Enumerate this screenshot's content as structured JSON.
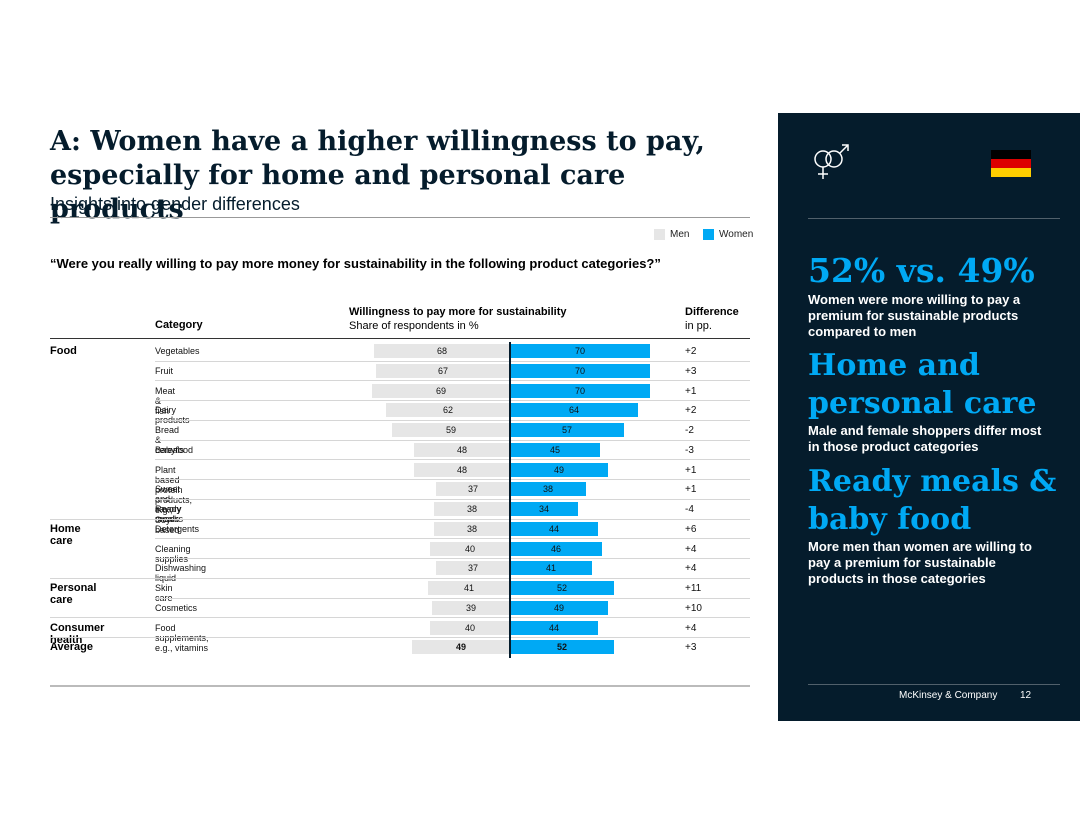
{
  "title": "A: Women have a higher willingness to pay, especially for home and personal care products",
  "subtitle": "Insights into gender differences",
  "legend": {
    "men": "Men",
    "women": "Women"
  },
  "question": "“Were you really willing to pay more money for sustainability in the following product categories?”",
  "headers": {
    "category": "Category",
    "wtp_title": "Willingness to pay more for sustainability",
    "wtp_sub": "Share of respondents in %",
    "diff_title": "Difference",
    "diff_sub": "in pp."
  },
  "colors": {
    "men": "#e6e6e6",
    "women": "#00a9f4",
    "navy": "#051c2c"
  },
  "chart_data": {
    "type": "bar",
    "title": "Willingness to pay more for sustainability",
    "ylabel": "Share of respondents in %",
    "series": [
      {
        "name": "Men",
        "values": [
          68,
          67,
          69,
          62,
          59,
          48,
          48,
          37,
          38,
          38,
          40,
          37,
          41,
          39,
          40,
          49
        ]
      },
      {
        "name": "Women",
        "values": [
          70,
          70,
          70,
          64,
          57,
          45,
          49,
          38,
          34,
          44,
          46,
          41,
          52,
          49,
          44,
          52
        ]
      }
    ],
    "categories": [
      "Vegetables",
      "Fruit",
      "Meat & fish",
      "Dairy products",
      "Bread & cereals",
      "Babyfood",
      "Plant based protein products, e.g., Soy-based",
      "Sweet and savory snacks",
      "Ready meals",
      "Detergents",
      "Cleaning supplies",
      "Dishwashing liquid",
      "Skin care",
      "Cosmetics",
      "Food supplements, e.g., vitamins",
      ""
    ],
    "groups": [
      "Food",
      "",
      "",
      "",
      "",
      "",
      "",
      "",
      "",
      "Home care",
      "",
      "",
      "Personal care",
      "",
      "Consumer health",
      "Average"
    ],
    "differences": [
      "+2",
      "+3",
      "+1",
      "+2",
      "-2",
      "-3",
      "+1",
      "+1",
      "-4",
      "+6",
      "+4",
      "+4",
      "+11",
      "+10",
      "+4",
      "+3"
    ]
  },
  "panel": {
    "stat": "52% vs. 49%",
    "stat_text": "Women were more willing to pay a premium for sustainable products compared to men",
    "head2": "Home and personal care",
    "text2": "Male and female shoppers differ most in those product categories",
    "head3": "Ready meals & baby food",
    "text3": "More men than women are willing to pay a premium for sustainable products in those categories",
    "company": "McKinsey & Company",
    "page": "12",
    "flag_colors": [
      "#000000",
      "#dd0000",
      "#ffce00"
    ],
    "gender_icon": "gender-symbols-icon"
  }
}
